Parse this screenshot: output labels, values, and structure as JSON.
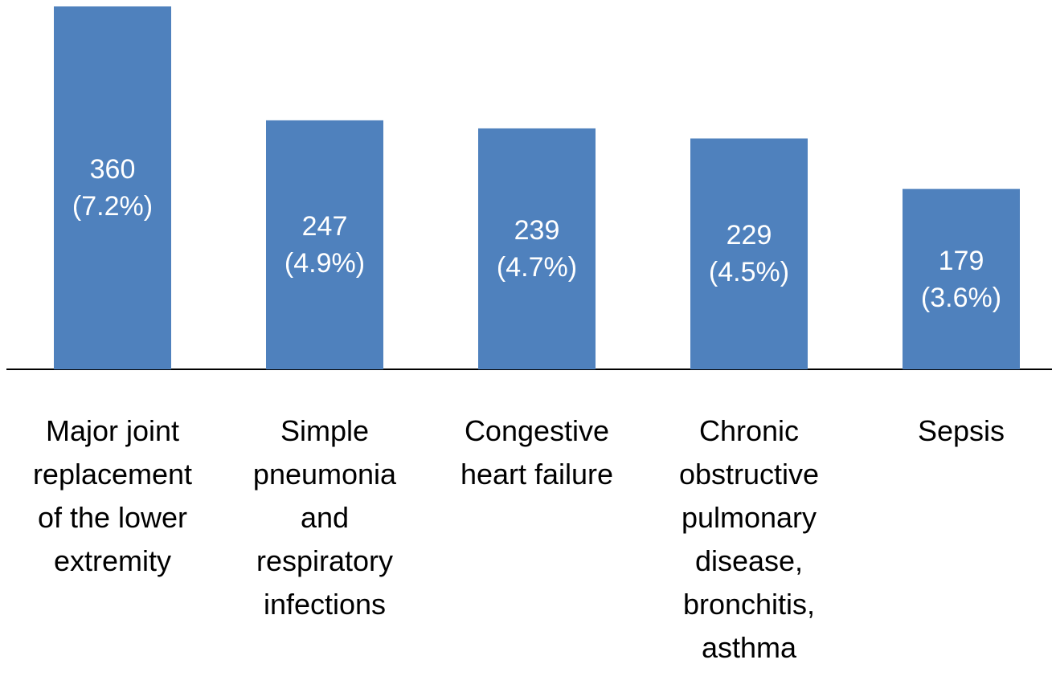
{
  "chart_data": {
    "type": "bar",
    "categories": [
      "Major joint replacement of the lower extremity",
      "Simple pneumonia and respiratory infections",
      "Congestive heart failure",
      "Chronic obstructive pulmonary disease, bronchitis, asthma",
      "Sepsis"
    ],
    "values": [
      360,
      247,
      239,
      229,
      179
    ],
    "value_labels": [
      "360 (7.2%)",
      "247 (4.9%)",
      "239 (4.7%)",
      "229 (4.5%)",
      "179 (3.6%)"
    ],
    "color": "#4f81bd"
  }
}
